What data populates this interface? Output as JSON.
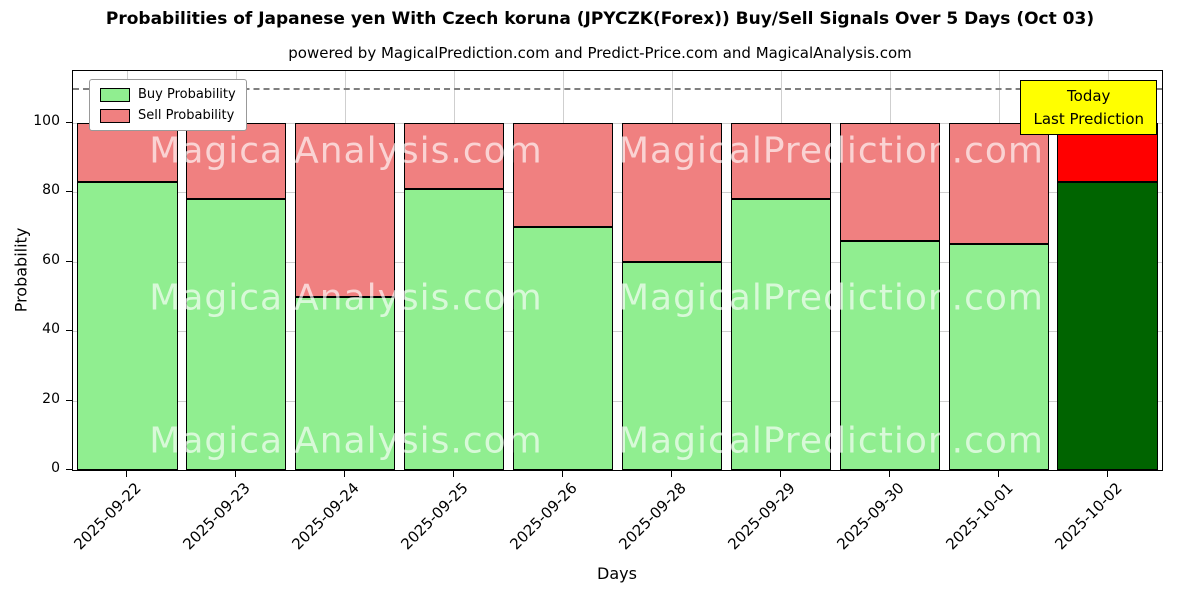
{
  "title": "Probabilities of Japanese yen With Czech koruna (JPYCZK(Forex)) Buy/Sell Signals Over 5 Days (Oct 03)",
  "subtitle": "powered by MagicalPrediction.com and Predict-Price.com and MagicalAnalysis.com",
  "chart_data": {
    "type": "bar",
    "stacked": true,
    "title": "Probabilities of Japanese yen With Czech koruna (JPYCZK(Forex)) Buy/Sell Signals Over 5 Days (Oct 03)",
    "xlabel": "Days",
    "ylabel": "Probability",
    "categories": [
      "2025-09-22",
      "2025-09-23",
      "2025-09-24",
      "2025-09-25",
      "2025-09-26",
      "2025-09-28",
      "2025-09-29",
      "2025-09-30",
      "2025-10-01",
      "2025-10-02"
    ],
    "series": [
      {
        "name": "Buy Probability",
        "color": "#90EE90",
        "last_bar_color": "#006400",
        "values": [
          83,
          78,
          50,
          81,
          70,
          60,
          78,
          66,
          65,
          83
        ]
      },
      {
        "name": "Sell Probability",
        "color": "#F08080",
        "last_bar_color": "#FF0000",
        "values": [
          17,
          22,
          50,
          19,
          30,
          40,
          22,
          34,
          35,
          17
        ]
      }
    ],
    "yticks": [
      0,
      20,
      40,
      60,
      80,
      100
    ],
    "ylim": [
      0,
      115
    ],
    "dashed_line_y": 110,
    "grid": true,
    "legend_position": "upper left",
    "annotation": {
      "line1": "Today",
      "line2": "Last Prediction",
      "bg_color": "#FFFF00"
    },
    "watermarks": [
      "MagicalAnalysis.com",
      "MagicalPrediction.com"
    ]
  }
}
